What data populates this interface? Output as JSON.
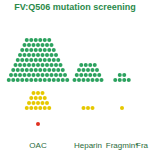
{
  "chart_data": {
    "type": "dot",
    "title": "FV:Q506 mutation screening",
    "categories": [
      "OAC",
      "Heparin",
      "Fragmin*",
      "Fra"
    ],
    "series": [
      {
        "color": "#2ca25f",
        "values": [
          90,
          22,
          6,
          0
        ]
      },
      {
        "color": "#e6c800",
        "values": [
          18,
          3,
          1,
          0
        ]
      },
      {
        "color": "#e03020",
        "values": [
          1,
          0,
          0,
          0
        ]
      }
    ],
    "tick_labels": "x"
  }
}
